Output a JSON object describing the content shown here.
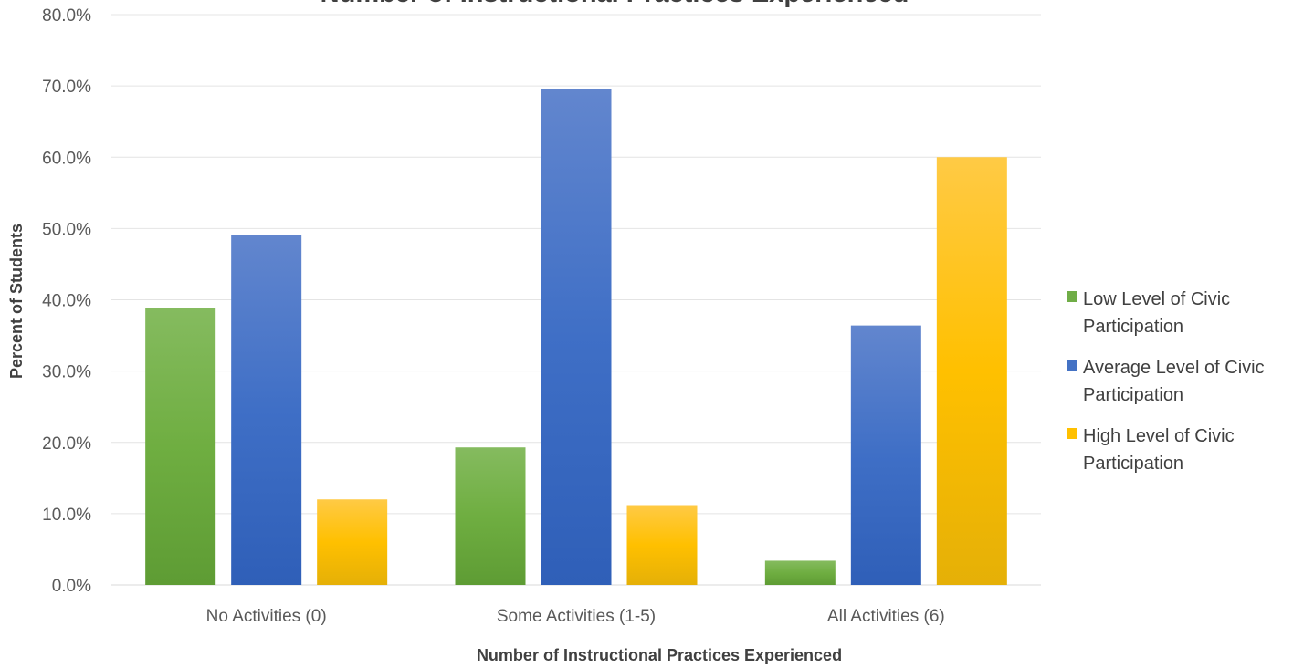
{
  "chart_data": {
    "type": "bar",
    "title": "Number of Instructional Practices Experienced",
    "xlabel": "Number of Instructional Practices Experienced",
    "ylabel": "Percent of Students",
    "categories": [
      "No Activities (0)",
      "Some Activities (1-5)",
      "All Activities (6)"
    ],
    "series": [
      {
        "name": "Low Level of Civic Participation",
        "legend_lines": [
          "Low Level of Civic",
          "Participation"
        ],
        "color": "#70AD47",
        "values": [
          38.8,
          19.3,
          3.4
        ]
      },
      {
        "name": "Average Level of Civic Participation",
        "legend_lines": [
          "Average Level of Civic",
          "Participation"
        ],
        "color": "#4472C4",
        "values": [
          49.1,
          69.6,
          36.4
        ]
      },
      {
        "name": "High Level of Civic Participation",
        "legend_lines": [
          "High Level of Civic",
          "Participation"
        ],
        "color": "#FFC000",
        "values": [
          12.0,
          11.2,
          60.0
        ]
      }
    ],
    "ylim": [
      0,
      80
    ],
    "yticks": [
      "0.0%",
      "10.0%",
      "20.0%",
      "30.0%",
      "40.0%",
      "50.0%",
      "60.0%",
      "70.0%",
      "80.0%"
    ],
    "grid": true,
    "legend_position": "right"
  }
}
